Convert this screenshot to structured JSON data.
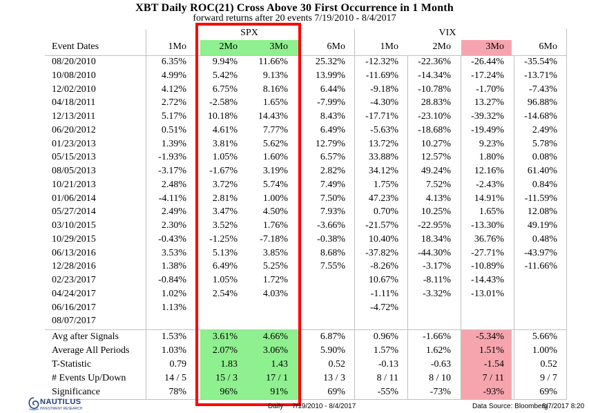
{
  "title": "XBT Daily ROC(21) Cross Above 30 First Occurrence in 1 Month",
  "subtitle": "forward returns after 20 events 7/19/2010 - 8/4/2017",
  "groups": {
    "spx": "SPX",
    "vix": "VIX"
  },
  "headers": [
    "Event Dates",
    "1Mo",
    "2Mo",
    "3Mo",
    "6Mo",
    "1Mo",
    "2Mo",
    "3Mo",
    "6Mo"
  ],
  "rows": [
    [
      "08/20/2010",
      "6.35%",
      "9.94%",
      "11.66%",
      "25.32%",
      "-12.32%",
      "-22.36%",
      "-26.44%",
      "-35.54%"
    ],
    [
      "10/08/2010",
      "4.99%",
      "5.42%",
      "9.13%",
      "13.99%",
      "-11.69%",
      "-14.34%",
      "-17.24%",
      "-13.71%"
    ],
    [
      "12/02/2010",
      "4.12%",
      "6.75%",
      "8.16%",
      "6.44%",
      "-9.18%",
      "-10.78%",
      "-1.70%",
      "-7.43%"
    ],
    [
      "04/18/2011",
      "2.72%",
      "-2.58%",
      "1.65%",
      "-7.99%",
      "-4.30%",
      "28.83%",
      "13.27%",
      "96.88%"
    ],
    [
      "12/13/2011",
      "5.17%",
      "10.18%",
      "14.43%",
      "8.43%",
      "-17.71%",
      "-23.10%",
      "-39.32%",
      "-14.68%"
    ],
    [
      "06/20/2012",
      "0.51%",
      "4.61%",
      "7.77%",
      "6.49%",
      "-5.63%",
      "-18.68%",
      "-19.49%",
      "2.49%"
    ],
    [
      "01/23/2013",
      "1.39%",
      "3.81%",
      "5.62%",
      "12.79%",
      "13.72%",
      "10.27%",
      "9.23%",
      "5.78%"
    ],
    [
      "05/15/2013",
      "-1.93%",
      "1.05%",
      "1.60%",
      "6.57%",
      "33.88%",
      "12.57%",
      "1.80%",
      "0.08%"
    ],
    [
      "08/05/2013",
      "-3.17%",
      "-1.67%",
      "3.19%",
      "2.82%",
      "34.12%",
      "49.24%",
      "12.16%",
      "61.40%"
    ],
    [
      "10/21/2013",
      "2.48%",
      "3.72%",
      "5.74%",
      "7.49%",
      "1.75%",
      "7.52%",
      "-2.43%",
      "0.84%"
    ],
    [
      "01/06/2014",
      "-4.11%",
      "2.81%",
      "1.00%",
      "7.50%",
      "47.23%",
      "4.13%",
      "14.91%",
      "-11.59%"
    ],
    [
      "05/27/2014",
      "2.49%",
      "3.47%",
      "4.50%",
      "7.93%",
      "0.70%",
      "10.25%",
      "1.65%",
      "12.08%"
    ],
    [
      "03/10/2015",
      "2.30%",
      "3.52%",
      "1.76%",
      "-3.66%",
      "-21.57%",
      "-22.95%",
      "-13.30%",
      "49.19%"
    ],
    [
      "10/29/2015",
      "-0.43%",
      "-1.25%",
      "-7.18%",
      "-0.38%",
      "10.40%",
      "18.34%",
      "36.76%",
      "0.48%"
    ],
    [
      "06/13/2016",
      "3.53%",
      "5.13%",
      "3.85%",
      "8.68%",
      "-37.82%",
      "-44.30%",
      "-27.71%",
      "-43.97%"
    ],
    [
      "12/28/2016",
      "1.38%",
      "6.49%",
      "5.25%",
      "7.55%",
      "-8.26%",
      "-3.17%",
      "-10.89%",
      "-11.66%"
    ],
    [
      "02/23/2017",
      "-0.84%",
      "1.05%",
      "1.72%",
      "",
      "10.67%",
      "-8.11%",
      "-14.43%",
      ""
    ],
    [
      "04/24/2017",
      "1.02%",
      "2.54%",
      "4.03%",
      "",
      "-1.11%",
      "-3.32%",
      "-13.01%",
      ""
    ],
    [
      "06/16/2017",
      "1.13%",
      "",
      "",
      "",
      "-4.72%",
      "",
      "",
      ""
    ],
    [
      "08/07/2017",
      "",
      "",
      "",
      "",
      "",
      "",
      "",
      ""
    ]
  ],
  "stats": [
    [
      "Avg after Signals",
      "1.53%",
      "3.61%",
      "4.66%",
      "6.87%",
      "0.96%",
      "-1.66%",
      "-5.34%",
      "5.66%"
    ],
    [
      "Average All Periods",
      "1.03%",
      "2.07%",
      "3.06%",
      "5.90%",
      "1.57%",
      "1.62%",
      "1.51%",
      "1.00%"
    ],
    [
      "T-Statistic",
      "0.79",
      "1.83",
      "1.43",
      "0.52",
      "-0.13",
      "-0.63",
      "-1.54",
      "0.52"
    ],
    [
      "# Events Up/Down",
      "14 / 5",
      "15 / 3",
      "17 / 1",
      "13 / 3",
      "8 / 11",
      "8 / 10",
      "7 / 11",
      "9 / 7"
    ],
    [
      "Significance",
      "78%",
      "96%",
      "91%",
      "69%",
      "-55%",
      "-73%",
      "-93%",
      "69%"
    ]
  ],
  "footer": {
    "daily": "Daily",
    "range": "7/19/2010 - 8/4/2017",
    "source": "Data Source: Bloomberg",
    "stamp": "8/7/2017 8:20",
    "logo_name": "NAUTILUS",
    "logo_sub": "INVESTMENT RESEARCH"
  },
  "colors": {
    "highlight_green": "#8ef08e",
    "highlight_pink": "#f6a5ae",
    "box_red": "#ff0000"
  }
}
